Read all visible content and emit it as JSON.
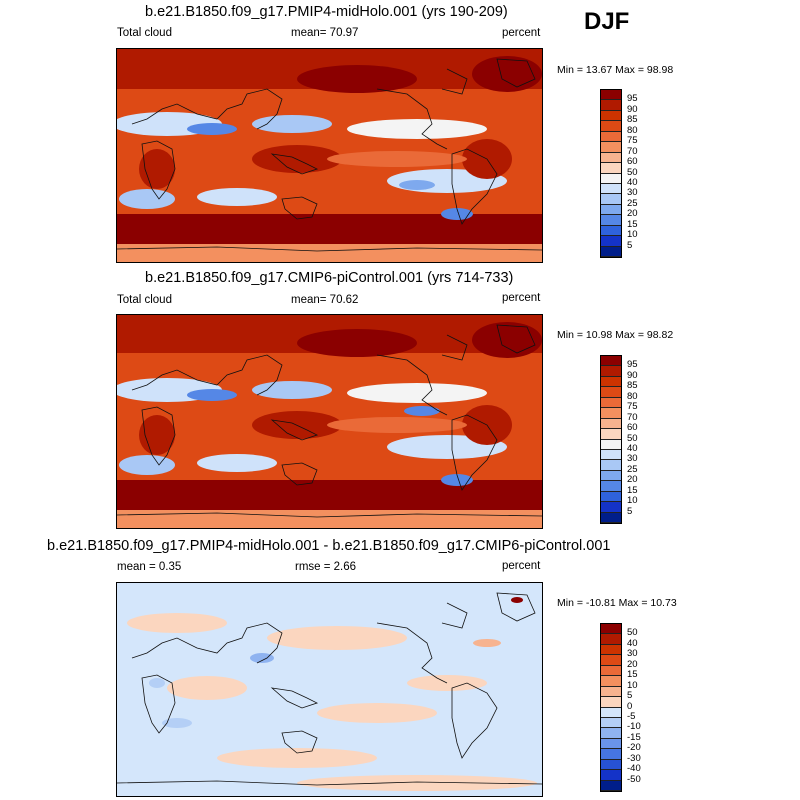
{
  "season": "DJF",
  "panels": [
    {
      "title": "b.e21.B1850.f09_g17.PMIP4-midHolo.001 (yrs 190-209)",
      "left_label": "Total cloud",
      "center_label": "mean=  70.97",
      "right_label": "percent",
      "minmax": "Min =  13.67 Max =  98.98"
    },
    {
      "title": "b.e21.B1850.f09_g17.CMIP6-piControl.001 (yrs 714-733)",
      "left_label": "Total cloud",
      "center_label": "mean=  70.62",
      "right_label": "percent",
      "minmax": "Min =  10.98 Max =  98.82"
    },
    {
      "title": "b.e21.B1850.f09_g17.PMIP4-midHolo.001 - b.e21.B1850.f09_g17.CMIP6-piControl.001",
      "left_label": "mean =   0.35",
      "center_label": "rmse =   2.66",
      "right_label": "percent",
      "minmax": "Min = -10.81 Max =  10.73"
    }
  ],
  "colorbars": {
    "cloud": {
      "labels": [
        "95",
        "90",
        "85",
        "80",
        "75",
        "70",
        "60",
        "50",
        "40",
        "30",
        "25",
        "20",
        "15",
        "10",
        "5"
      ],
      "colors": [
        "#8b0000",
        "#b01a00",
        "#cc3300",
        "#dd4a15",
        "#ea6a38",
        "#f3905f",
        "#f7b38f",
        "#fbd6bf",
        "#f4f4f4",
        "#cfe2fa",
        "#a9c8f5",
        "#7ea9ee",
        "#5587e6",
        "#2f62dc",
        "#1433c8",
        "#001e8a"
      ]
    },
    "diff": {
      "labels": [
        "50",
        "40",
        "30",
        "20",
        "15",
        "10",
        "5",
        "0",
        "-5",
        "-10",
        "-15",
        "-20",
        "-30",
        "-40",
        "-50"
      ],
      "colors": [
        "#8b0000",
        "#b01a00",
        "#cc3300",
        "#dd4a15",
        "#ea6a38",
        "#f3905f",
        "#f7b38f",
        "#fbd6bf",
        "#d4e6fb",
        "#b4cff6",
        "#8fb3f0",
        "#6a94ea",
        "#4675e2",
        "#2752d4",
        "#1433c8",
        "#001e8a"
      ]
    }
  },
  "chart_data": [
    {
      "type": "heatmap",
      "title": "b.e21.B1850.f09_g17.PMIP4-midHolo.001 (yrs 190-209)",
      "variable": "Total cloud",
      "units": "percent",
      "season": "DJF",
      "mean": 70.97,
      "min": 13.67,
      "max": 98.98,
      "levels": [
        5,
        10,
        15,
        20,
        25,
        30,
        40,
        50,
        60,
        70,
        75,
        80,
        85,
        90,
        95
      ]
    },
    {
      "type": "heatmap",
      "title": "b.e21.B1850.f09_g17.CMIP6-piControl.001 (yrs 714-733)",
      "variable": "Total cloud",
      "units": "percent",
      "season": "DJF",
      "mean": 70.62,
      "min": 10.98,
      "max": 98.82,
      "levels": [
        5,
        10,
        15,
        20,
        25,
        30,
        40,
        50,
        60,
        70,
        75,
        80,
        85,
        90,
        95
      ]
    },
    {
      "type": "heatmap",
      "title": "b.e21.B1850.f09_g17.PMIP4-midHolo.001 - b.e21.B1850.f09_g17.CMIP6-piControl.001",
      "units": "percent",
      "season": "DJF",
      "mean": 0.35,
      "rmse": 2.66,
      "min": -10.81,
      "max": 10.73,
      "levels": [
        -50,
        -40,
        -30,
        -20,
        -15,
        -10,
        -5,
        0,
        5,
        10,
        15,
        20,
        30,
        40,
        50
      ]
    }
  ]
}
